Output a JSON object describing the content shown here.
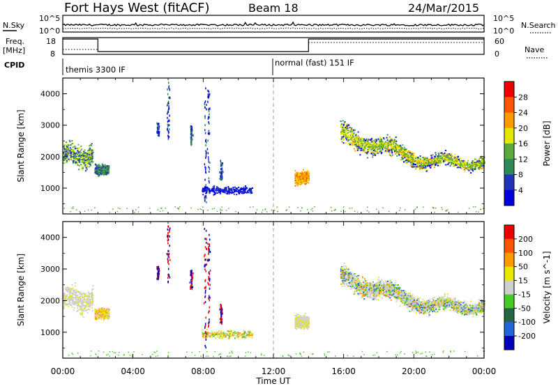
{
  "header": {
    "title": "Fort Hays West (fitACF)",
    "beam": "Beam 18",
    "date": "24/Mar/2015"
  },
  "colors": {
    "power": [
      "#0000dd",
      "#2233bb",
      "#2e8b57",
      "#5aaa3a",
      "#e6e600",
      "#ff9900",
      "#ff5500",
      "#ee0000"
    ],
    "velocity": [
      "#0000bb",
      "#2266dd",
      "#226644",
      "#44cc22",
      "#cfcfcf",
      "#e8e800",
      "#ff9900",
      "#ff5500",
      "#ee0000"
    ]
  },
  "aux": {
    "nsky_label": "N.Sky",
    "nsky_top": "10^5",
    "nsky_bottom": "10^0",
    "nsearch_label": "N.Search",
    "nsearch_top": "10^5",
    "nsearch_bottom": "10^0",
    "freq_label": "Freq.",
    "freq_unit": "[MHz]",
    "freq_top": "18",
    "freq_bottom": "8",
    "nave_label": "Nave",
    "nave_top": "60",
    "nave_bottom": "0",
    "cpid_label": "CPID",
    "cpid_1": "themis 3300 IF",
    "cpid_2": "normal (fast) 151 IF"
  },
  "chart_data": [
    {
      "type": "heatmap",
      "title": "",
      "xlabel": "Time UT",
      "ylabel": "Slant Range [km]",
      "x_ticks": [
        "00:00",
        "04:00",
        "08:00",
        "12:00",
        "16:00",
        "20:00",
        "00:00"
      ],
      "x_hours": [
        0,
        4,
        8,
        12,
        16,
        20,
        24
      ],
      "xlim": [
        0,
        24
      ],
      "ylim": [
        180,
        4500
      ],
      "y_ticks": [
        1000,
        2000,
        3000,
        4000
      ],
      "colorbar_label": "Power [dB]",
      "colorbar_ticks": [
        "4",
        "8",
        "12",
        "16",
        "20",
        "24",
        "28"
      ],
      "scatter_regions": [
        {
          "t": [
            0.0,
            1.7
          ],
          "range": [
            1600,
            2500
          ],
          "value": "8-16 dB"
        },
        {
          "t": [
            1.8,
            2.6
          ],
          "range": [
            1400,
            1800
          ],
          "value": "8-16 dB"
        },
        {
          "t": [
            7.9,
            10.8
          ],
          "range": [
            800,
            1100
          ],
          "value": "4-8 dB"
        },
        {
          "t": [
            13.2,
            14.0
          ],
          "range": [
            1100,
            1600
          ],
          "value": "16-24 dB"
        },
        {
          "t": [
            15.8,
            24.0
          ],
          "range": [
            1500,
            3000
          ],
          "value": "8-24 dB"
        }
      ]
    },
    {
      "type": "heatmap",
      "title": "",
      "xlabel": "Time UT",
      "ylabel": "Slant Range [km]",
      "x_ticks": [
        "00:00",
        "04:00",
        "08:00",
        "12:00",
        "16:00",
        "20:00",
        "00:00"
      ],
      "x_hours": [
        0,
        4,
        8,
        12,
        16,
        20,
        24
      ],
      "xlim": [
        0,
        24
      ],
      "ylim": [
        180,
        4500
      ],
      "y_ticks": [
        1000,
        2000,
        3000,
        4000
      ],
      "colorbar_label": "Velocity [m s^-1]",
      "colorbar_ticks": [
        "200",
        "100",
        "50",
        "15",
        "-15",
        "-50",
        "-100",
        "-200"
      ],
      "scatter_regions": [
        {
          "t": [
            0.0,
            1.7
          ],
          "range": [
            1600,
            2500
          ],
          "value": "-15 to 15 m/s"
        },
        {
          "t": [
            1.8,
            2.6
          ],
          "range": [
            1400,
            1800
          ],
          "value": "-50 to 15 m/s"
        },
        {
          "t": [
            7.9,
            10.8
          ],
          "range": [
            800,
            1100
          ],
          "value": "-50 to 50 m/s"
        },
        {
          "t": [
            13.2,
            14.0
          ],
          "range": [
            1100,
            1600
          ],
          "value": "-15 to 15 m/s"
        },
        {
          "t": [
            15.8,
            24.0
          ],
          "range": [
            1500,
            3000
          ],
          "value": "-15 to 15 m/s"
        }
      ]
    }
  ]
}
